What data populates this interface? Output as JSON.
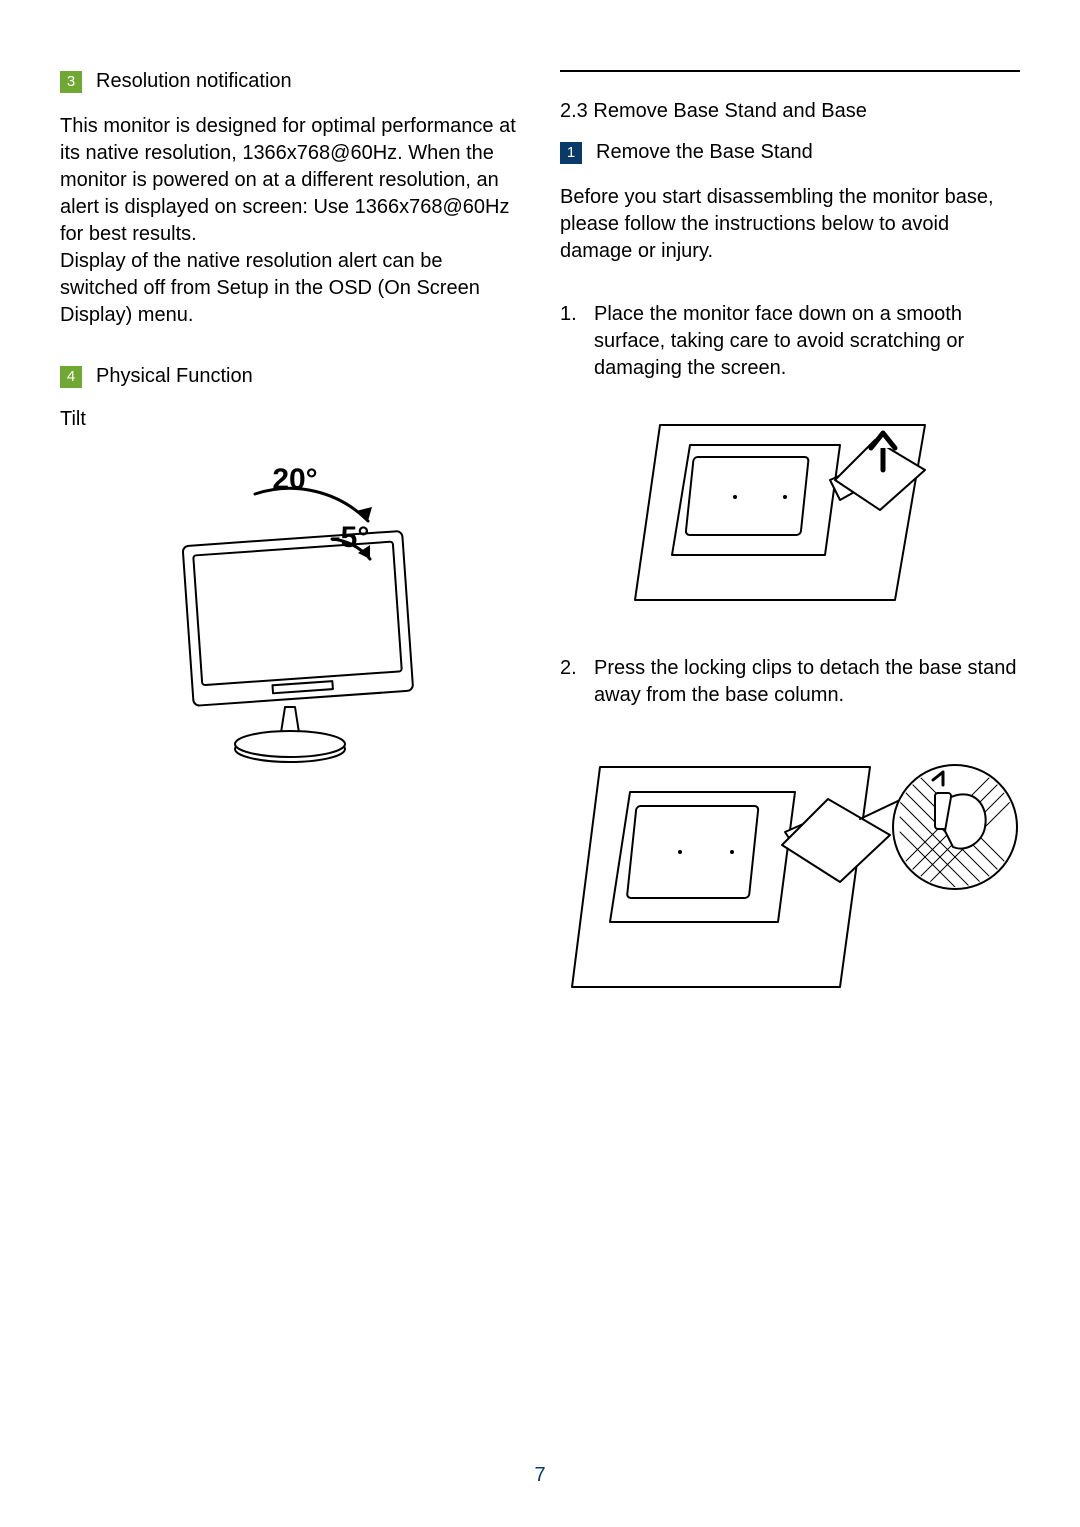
{
  "colors": {
    "badge_green": "#6fa933",
    "badge_blue": "#0a3a6a",
    "text": "#000000",
    "page_num": "#0a3a6a",
    "rule": "#000000",
    "stroke": "#000000",
    "fill_white": "#ffffff"
  },
  "left": {
    "section3": {
      "num": "3",
      "title": "Resolution notification",
      "body": "This monitor is designed for optimal performance at its native resolution, 1366x768@60Hz. When the monitor is powered on at a different resolution, an alert is displayed on screen: Use 1366x768@60Hz for best results.\nDisplay of the native resolution alert can be switched off from Setup in the OSD (On Screen Display) menu."
    },
    "section4": {
      "num": "4",
      "title": "Physical Function",
      "sub": "Tilt",
      "tilt": {
        "angle_back": "20°",
        "angle_fwd": "-5°",
        "stroke_width": 2
      }
    }
  },
  "right": {
    "section_number": "2.3",
    "section_title": "Remove Base Stand and Base",
    "step_badge": "1",
    "step_title": "Remove the Base Stand",
    "intro": "Before you start disassembling the monitor base, please follow the instructions below to avoid damage or injury.",
    "steps": [
      "Place the monitor face down on a smooth surface, taking care to avoid scratching or damaging the screen.",
      "Press the locking clips to detach the base stand away from the base column."
    ],
    "fig": {
      "stroke_width": 2
    }
  },
  "page_number": "7"
}
